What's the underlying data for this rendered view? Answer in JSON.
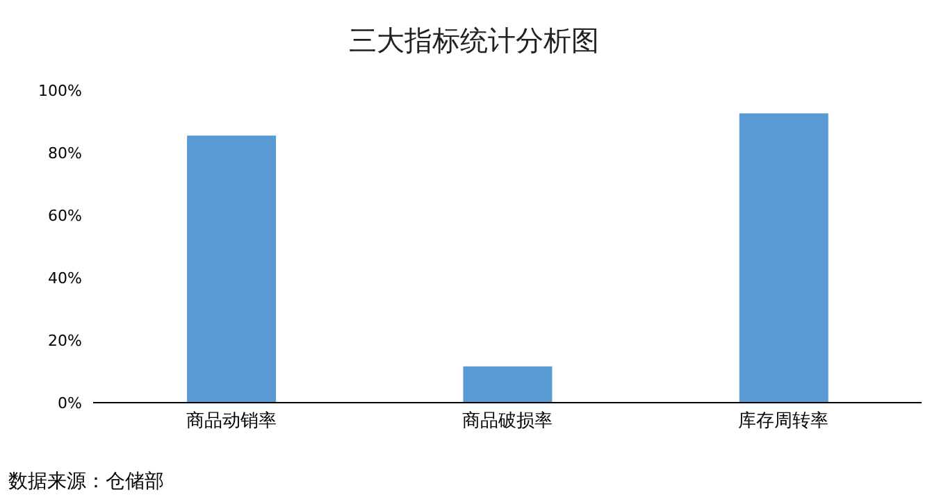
{
  "chart_data": {
    "type": "bar",
    "title": "三大指标统计分析图",
    "categories": [
      "商品动销率",
      "商品破损率",
      "库存周转率"
    ],
    "values": [
      85.5,
      11.6,
      92.6
    ],
    "color": "#5b9bd5",
    "ylim": [
      0,
      100
    ],
    "yticks": [
      {
        "value": 0,
        "label": "0%"
      },
      {
        "value": 20,
        "label": "20%"
      },
      {
        "value": 40,
        "label": "40%"
      },
      {
        "value": 60,
        "label": "60%"
      },
      {
        "value": 80,
        "label": "80%"
      },
      {
        "value": 100,
        "label": "100%"
      }
    ],
    "grid": false,
    "annotations": [
      "数据来源：仓储部"
    ]
  }
}
